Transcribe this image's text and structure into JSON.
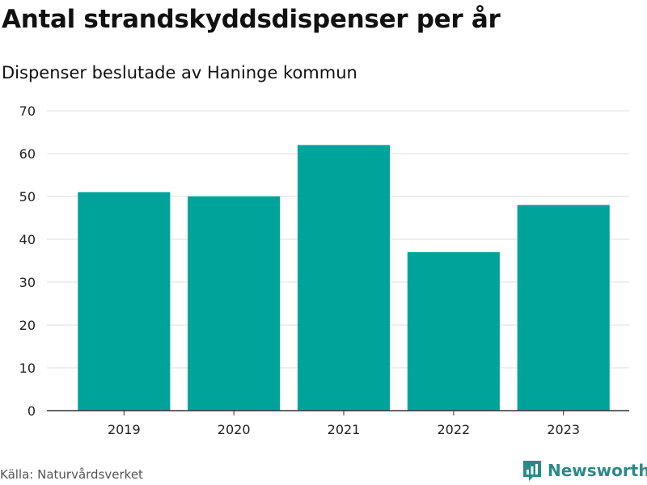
{
  "title": "Antal strandskyddsdispenser per år",
  "subtitle": "Dispenser beslutade av Haninge kommun",
  "source": "Källa: Naturvårdsverket",
  "brand": {
    "name": "Newsworthy",
    "icon": "newsworthy-logo-icon",
    "color": "#2a8a87"
  },
  "chart_data": {
    "type": "bar",
    "categories": [
      "2019",
      "2020",
      "2021",
      "2022",
      "2023"
    ],
    "values": [
      51,
      50,
      62,
      37,
      48
    ],
    "title": "Antal strandskyddsdispenser per år",
    "subtitle": "Dispenser beslutade av Haninge kommun",
    "xlabel": "",
    "ylabel": "",
    "ylim": [
      0,
      70
    ],
    "yticks": [
      0,
      10,
      20,
      30,
      40,
      50,
      60,
      70
    ],
    "grid": true,
    "legend": "none",
    "bar_color": "#00a39a"
  }
}
